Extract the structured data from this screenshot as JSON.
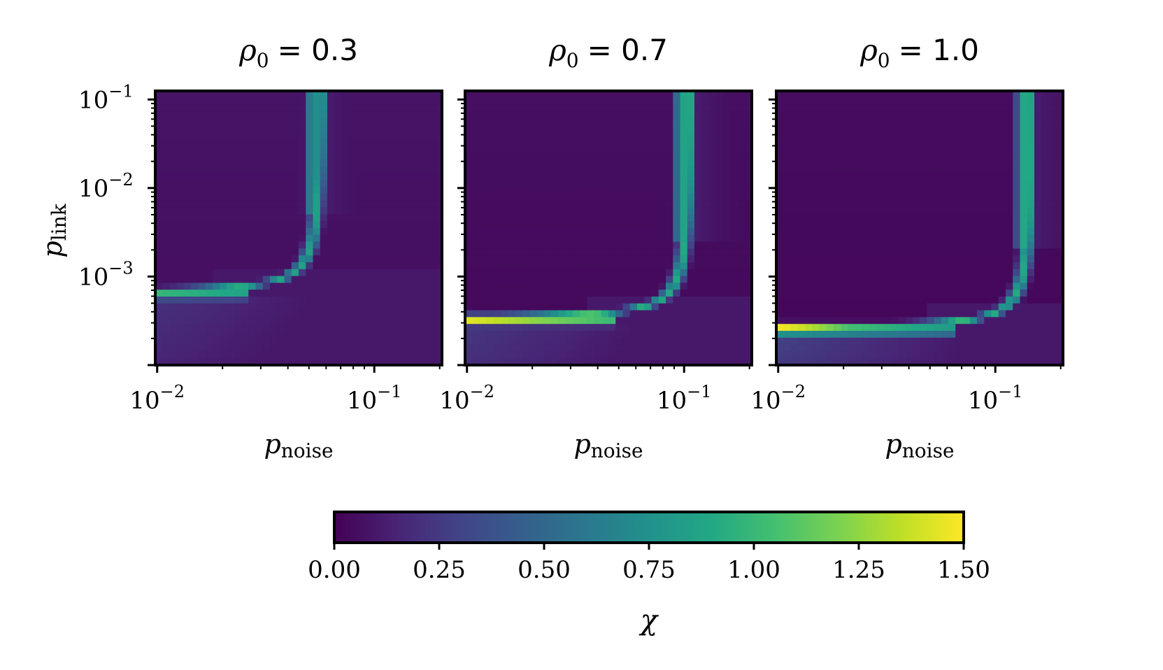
{
  "chart_data": [
    {
      "type": "heatmap",
      "title": "ρ0 = 0.3",
      "title_symbol": "ρ",
      "title_sub": "0",
      "title_value": "= 0.3",
      "rho0": 0.3,
      "xlabel": "p",
      "xlabel_sub": "noise",
      "ylabel": "p",
      "ylabel_sub": "link",
      "x_scale": "log",
      "y_scale": "log",
      "xlim": [
        0.0098,
        0.205
      ],
      "ylim": [
        0.0001,
        0.125
      ],
      "xticks": [
        {
          "value": 0.01,
          "base": "10",
          "exp": "−2"
        },
        {
          "value": 0.1,
          "base": "10",
          "exp": "−1"
        }
      ],
      "yticks": [
        {
          "value": 0.1,
          "base": "10",
          "exp": "−1"
        },
        {
          "value": 0.01,
          "base": "10",
          "exp": "−2"
        },
        {
          "value": 0.001,
          "base": "10",
          "exp": "−3"
        }
      ],
      "ridge": {
        "vertical_x": 0.059,
        "plateau_y": 0.00063,
        "peak_value": 1.05,
        "ridge_value": 0.85,
        "background_low": 0.05,
        "band_below_value": 0.22
      }
    },
    {
      "type": "heatmap",
      "title": "ρ0 = 0.7",
      "title_symbol": "ρ",
      "title_sub": "0",
      "title_value": "= 0.7",
      "rho0": 0.7,
      "xlabel": "p",
      "xlabel_sub": "noise",
      "ylabel": "",
      "ylabel_sub": "",
      "x_scale": "log",
      "y_scale": "log",
      "xlim": [
        0.0098,
        0.205
      ],
      "ylim": [
        0.0001,
        0.125
      ],
      "xticks": [
        {
          "value": 0.01,
          "base": "10",
          "exp": "−2"
        },
        {
          "value": 0.1,
          "base": "10",
          "exp": "−1"
        }
      ],
      "yticks": [
        {
          "value": 0.1,
          "base": "",
          "exp": ""
        },
        {
          "value": 0.01,
          "base": "",
          "exp": ""
        },
        {
          "value": 0.001,
          "base": "",
          "exp": ""
        }
      ],
      "ridge": {
        "vertical_x": 0.11,
        "plateau_y": 0.00032,
        "peak_value": 1.45,
        "ridge_value": 0.9,
        "background_low": 0.03,
        "band_below_value": 0.25
      }
    },
    {
      "type": "heatmap",
      "title": "ρ0 = 1.0",
      "title_symbol": "ρ",
      "title_sub": "0",
      "title_value": "= 1.0",
      "rho0": 1.0,
      "xlabel": "p",
      "xlabel_sub": "noise",
      "ylabel": "",
      "ylabel_sub": "",
      "x_scale": "log",
      "y_scale": "log",
      "xlim": [
        0.0098,
        0.205
      ],
      "ylim": [
        0.0001,
        0.125
      ],
      "xticks": [
        {
          "value": 0.01,
          "base": "10",
          "exp": "−2"
        },
        {
          "value": 0.1,
          "base": "10",
          "exp": "−1"
        }
      ],
      "yticks": [
        {
          "value": 0.1,
          "base": "",
          "exp": ""
        },
        {
          "value": 0.01,
          "base": "",
          "exp": ""
        },
        {
          "value": 0.001,
          "base": "",
          "exp": ""
        }
      ],
      "ridge": {
        "vertical_x": 0.152,
        "plateau_y": 0.00025,
        "peak_value": 1.5,
        "ridge_value": 0.9,
        "background_low": 0.02,
        "band_below_value": 0.3
      }
    }
  ],
  "colorbar": {
    "label": "χ",
    "colormap": "viridis",
    "range": [
      0,
      1.5
    ],
    "ticks": [
      {
        "value": 0.0,
        "label": "0.00"
      },
      {
        "value": 0.25,
        "label": "0.25"
      },
      {
        "value": 0.5,
        "label": "0.50"
      },
      {
        "value": 0.75,
        "label": "0.75"
      },
      {
        "value": 1.0,
        "label": "1.00"
      },
      {
        "value": 1.25,
        "label": "1.25"
      },
      {
        "value": 1.5,
        "label": "1.50"
      }
    ]
  },
  "colors": {
    "frame": "#000000",
    "viridis_stops": [
      "#440154",
      "#482475",
      "#414487",
      "#355f8d",
      "#2a788e",
      "#21918c",
      "#22a884",
      "#44bf70",
      "#7ad151",
      "#bddf26",
      "#fde725"
    ]
  }
}
